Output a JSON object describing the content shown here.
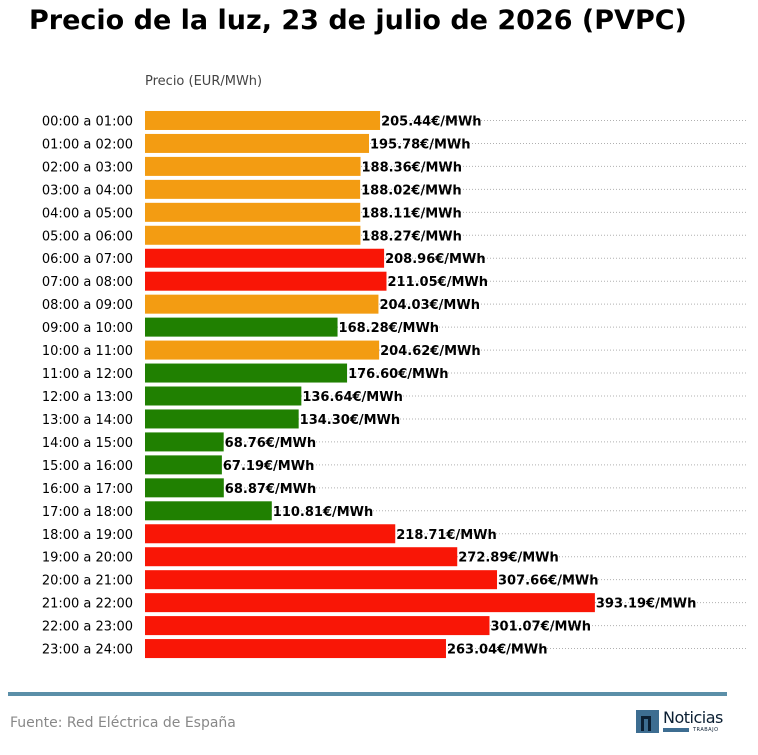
{
  "chart_data": {
    "type": "bar",
    "orientation": "horizontal",
    "title": "Precio de la luz, 23 de julio de 2026 (PVPC)",
    "ylabel": "Precio (EUR/MWh)",
    "value_suffix": "€/MWh",
    "grid": "dotted horizontal lines",
    "categories": [
      "00:00 a 01:00",
      "01:00 a 02:00",
      "02:00 a 03:00",
      "03:00 a 04:00",
      "04:00 a 05:00",
      "05:00 a 06:00",
      "06:00 a 07:00",
      "07:00 a 08:00",
      "08:00 a 09:00",
      "09:00 a 10:00",
      "10:00 a 11:00",
      "11:00 a 12:00",
      "12:00 a 13:00",
      "13:00 a 14:00",
      "14:00 a 15:00",
      "15:00 a 16:00",
      "16:00 a 17:00",
      "17:00 a 18:00",
      "18:00 a 19:00",
      "19:00 a 20:00",
      "20:00 a 21:00",
      "21:00 a 22:00",
      "22:00 a 23:00",
      "23:00 a 24:00"
    ],
    "values": [
      205.44,
      195.78,
      188.36,
      188.02,
      188.11,
      188.27,
      208.96,
      211.05,
      204.03,
      168.28,
      204.62,
      176.6,
      136.64,
      134.3,
      68.76,
      67.19,
      68.87,
      110.81,
      218.71,
      272.89,
      307.66,
      393.19,
      301.07,
      263.04
    ],
    "value_labels": [
      "205.44€/MWh",
      "195.78€/MWh",
      "188.36€/MWh",
      "188.02€/MWh",
      "188.11€/MWh",
      "188.27€/MWh",
      "208.96€/MWh",
      "211.05€/MWh",
      "204.03€/MWh",
      "168.28€/MWh",
      "204.62€/MWh",
      "176.60€/MWh",
      "136.64€/MWh",
      "134.30€/MWh",
      "68.76€/MWh",
      "67.19€/MWh",
      "68.87€/MWh",
      "110.81€/MWh",
      "218.71€/MWh",
      "272.89€/MWh",
      "307.66€/MWh",
      "393.19€/MWh",
      "301.07€/MWh",
      "263.04€/MWh"
    ],
    "bar_colors": [
      "#f39c12",
      "#f39c12",
      "#f39c12",
      "#f39c12",
      "#f39c12",
      "#f39c12",
      "#f91606",
      "#f91606",
      "#f39c12",
      "#208001",
      "#f39c12",
      "#208001",
      "#208001",
      "#208001",
      "#208001",
      "#208001",
      "#208001",
      "#208001",
      "#f91606",
      "#f91606",
      "#f91606",
      "#f91606",
      "#f91606",
      "#f91606"
    ],
    "xlim": [
      0,
      527
    ]
  },
  "footer": {
    "source": "Fuente: Red Eléctrica de España",
    "logo_word": "Noticias",
    "logo_sub": "TRABAJO"
  },
  "colors": {
    "high": "#f91606",
    "medium": "#f39c12",
    "low": "#208001",
    "rule": "#5b8fa8"
  }
}
